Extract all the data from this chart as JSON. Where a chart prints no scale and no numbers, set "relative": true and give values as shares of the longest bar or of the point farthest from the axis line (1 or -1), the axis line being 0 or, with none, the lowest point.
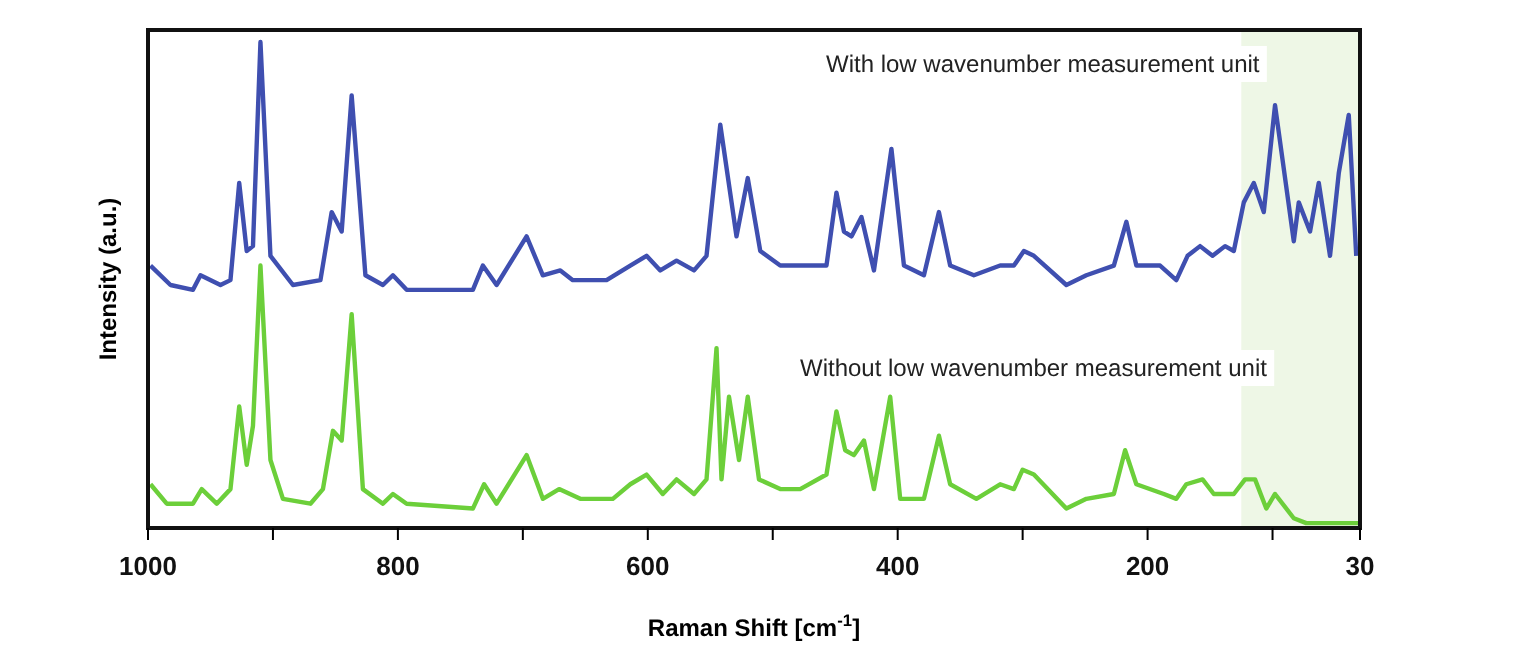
{
  "chart_data": {
    "type": "line",
    "relative": true,
    "xlabel": "Raman Shift [cm$^{-1}$]",
    "ylabel": "Intensity (a.u.)",
    "xlim": [
      1000,
      30
    ],
    "xticks": [
      1000,
      {
        "value": 900,
        "label": null
      },
      800,
      {
        "value": 700,
        "label": null
      },
      600,
      {
        "value": 500,
        "label": null
      },
      400,
      {
        "value": 300,
        "label": null
      },
      200,
      {
        "value": 100,
        "label": null
      },
      30
    ],
    "bands": [
      {
        "axis": "x",
        "from": 125,
        "to": 30,
        "color": "#eef7e6"
      }
    ],
    "series": [
      {
        "name": "With low wavenumber measurement unit",
        "color": "#3f4fb0",
        "x": [
          998,
          982,
          964,
          958,
          942,
          934,
          927,
          921,
          916,
          910,
          902,
          884,
          862,
          853,
          845,
          837,
          826,
          812,
          804,
          793,
          740,
          732,
          721,
          697,
          684,
          670,
          660,
          633,
          614,
          601,
          590,
          577,
          563,
          553,
          542,
          529,
          520,
          510,
          494,
          478,
          457,
          449,
          443,
          437,
          429,
          419,
          405,
          395,
          379,
          367,
          358,
          339,
          318,
          307,
          299,
          291,
          265,
          249,
          227,
          217,
          209,
          190,
          177,
          168,
          158,
          148,
          138,
          131,
          123,
          115,
          107,
          98,
          83,
          79,
          70,
          63,
          54,
          47,
          39,
          33
        ],
        "values": [
          0.54,
          0.5,
          0.49,
          0.52,
          0.5,
          0.51,
          0.71,
          0.57,
          0.58,
          1.0,
          0.56,
          0.5,
          0.51,
          0.65,
          0.61,
          0.89,
          0.52,
          0.5,
          0.52,
          0.49,
          0.49,
          0.54,
          0.5,
          0.6,
          0.52,
          0.53,
          0.51,
          0.51,
          0.54,
          0.56,
          0.53,
          0.55,
          0.53,
          0.56,
          0.83,
          0.6,
          0.72,
          0.57,
          0.54,
          0.54,
          0.54,
          0.69,
          0.61,
          0.6,
          0.64,
          0.53,
          0.78,
          0.54,
          0.52,
          0.65,
          0.54,
          0.52,
          0.54,
          0.54,
          0.57,
          0.56,
          0.5,
          0.52,
          0.54,
          0.63,
          0.54,
          0.54,
          0.51,
          0.56,
          0.58,
          0.56,
          0.58,
          0.57,
          0.67,
          0.71,
          0.65,
          0.87,
          0.59,
          0.67,
          0.61,
          0.71,
          0.56,
          0.73,
          0.85,
          0.56
        ]
      },
      {
        "name": "Without low wavenumber measurement unit",
        "color": "#6ccf3a",
        "x": [
          998,
          985,
          964,
          957,
          945,
          934,
          927,
          921,
          916,
          910,
          902,
          892,
          870,
          860,
          852,
          845,
          837,
          828,
          812,
          804,
          793,
          740,
          731,
          721,
          697,
          684,
          671,
          654,
          628,
          614,
          601,
          588,
          577,
          563,
          553,
          545,
          541,
          535,
          527,
          520,
          511,
          494,
          478,
          457,
          449,
          442,
          435,
          427,
          419,
          406,
          398,
          379,
          367,
          358,
          337,
          318,
          307,
          300,
          291,
          265,
          249,
          227,
          218,
          209,
          187,
          177,
          169,
          156,
          147,
          131,
          122,
          114,
          105,
          98,
          83,
          73,
          65,
          30
        ],
        "values": [
          0.09,
          0.05,
          0.05,
          0.08,
          0.05,
          0.08,
          0.25,
          0.13,
          0.21,
          0.54,
          0.14,
          0.06,
          0.05,
          0.08,
          0.2,
          0.18,
          0.44,
          0.08,
          0.05,
          0.07,
          0.05,
          0.04,
          0.09,
          0.05,
          0.15,
          0.06,
          0.08,
          0.06,
          0.06,
          0.09,
          0.11,
          0.07,
          0.1,
          0.07,
          0.1,
          0.37,
          0.1,
          0.27,
          0.14,
          0.27,
          0.1,
          0.08,
          0.08,
          0.11,
          0.24,
          0.16,
          0.15,
          0.18,
          0.08,
          0.27,
          0.06,
          0.06,
          0.19,
          0.09,
          0.06,
          0.09,
          0.08,
          0.12,
          0.11,
          0.04,
          0.06,
          0.07,
          0.16,
          0.09,
          0.07,
          0.06,
          0.09,
          0.1,
          0.07,
          0.07,
          0.1,
          0.1,
          0.04,
          0.07,
          0.02,
          0.01,
          0.01,
          0.01
        ]
      }
    ]
  }
}
